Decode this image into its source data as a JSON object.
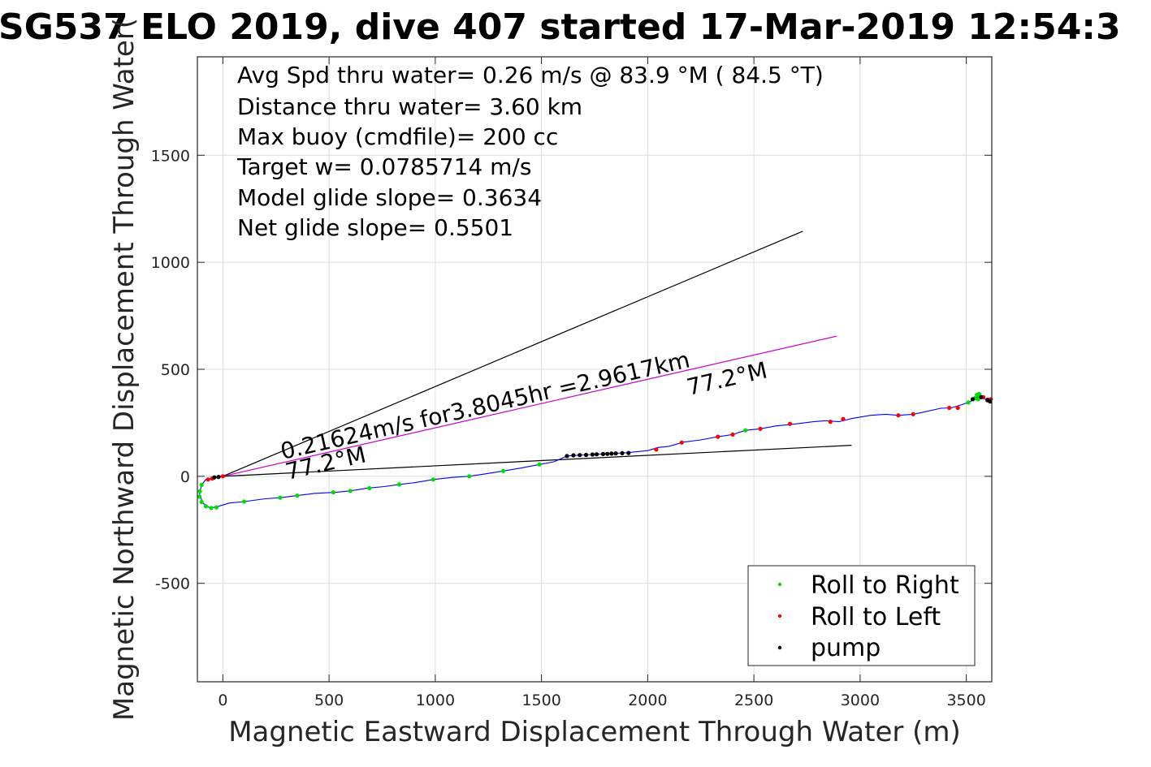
{
  "chart_data": {
    "type": "line",
    "title": "SG537 ELO 2019, dive 407 started 17-Mar-2019 12:54:3",
    "xlabel": "Magnetic Eastward Displacement Through Water (m)",
    "ylabel": "Magnetic Northward Displacement Through Water(",
    "xlim": [
      -120,
      3620
    ],
    "ylim": [
      -960,
      1960
    ],
    "xticks": [
      0,
      500,
      1000,
      1500,
      2000,
      2500,
      3000,
      3500
    ],
    "yticks": [
      -500,
      0,
      500,
      1000,
      1500
    ],
    "grid": true,
    "legend_position": "bottom-right",
    "info_lines": [
      "Avg Spd thru water=  0.26 m/s @  83.9 °M ( 84.5 °T)",
      "Distance thru water=  3.60 km",
      "Max buoy (cmdfile)= 200 cc",
      "Target w= 0.0785714 m/s",
      "Model glide slope= 0.3634",
      "Net glide slope= 0.5501"
    ],
    "annotations": {
      "upper_current": "0.21624m/s for3.8045hr =2.9617km",
      "upper_heading": "77.2°M",
      "lower_heading": "77.2°M"
    },
    "reference_lines": [
      {
        "color": "#000000",
        "points": [
          [
            0,
            0
          ],
          [
            2730,
            1145
          ]
        ]
      },
      {
        "color": "#cc00cc",
        "points": [
          [
            0,
            0
          ],
          [
            2890,
            655
          ]
        ]
      },
      {
        "color": "#000000",
        "points": [
          [
            0,
            0
          ],
          [
            2960,
            145
          ]
        ]
      }
    ],
    "series": [
      {
        "kind": "track",
        "color": "#0000ff",
        "points": [
          [
            0,
            0
          ],
          [
            -40,
            -5
          ],
          [
            -80,
            -15
          ],
          [
            -100,
            -40
          ],
          [
            -110,
            -80
          ],
          [
            -95,
            -125
          ],
          [
            -60,
            -148
          ],
          [
            -20,
            -140
          ],
          [
            30,
            -125
          ],
          [
            100,
            -118
          ],
          [
            200,
            -105
          ],
          [
            270,
            -100
          ],
          [
            350,
            -90
          ],
          [
            430,
            -80
          ],
          [
            530,
            -75
          ],
          [
            600,
            -68
          ],
          [
            680,
            -55
          ],
          [
            760,
            -48
          ],
          [
            830,
            -38
          ],
          [
            900,
            -30
          ],
          [
            990,
            -15
          ],
          [
            1080,
            -5
          ],
          [
            1160,
            0
          ],
          [
            1240,
            12
          ],
          [
            1320,
            25
          ],
          [
            1400,
            38
          ],
          [
            1490,
            55
          ],
          [
            1560,
            68
          ],
          [
            1620,
            95
          ],
          [
            1700,
            100
          ],
          [
            1800,
            105
          ],
          [
            1900,
            110
          ],
          [
            2000,
            120
          ],
          [
            2050,
            135
          ],
          [
            2100,
            140
          ],
          [
            2170,
            160
          ],
          [
            2250,
            170
          ],
          [
            2330,
            185
          ],
          [
            2400,
            195
          ],
          [
            2460,
            215
          ],
          [
            2530,
            222
          ],
          [
            2600,
            235
          ],
          [
            2700,
            245
          ],
          [
            2780,
            255
          ],
          [
            2840,
            260
          ],
          [
            2900,
            255
          ],
          [
            2960,
            270
          ],
          [
            3050,
            285
          ],
          [
            3120,
            290
          ],
          [
            3180,
            285
          ],
          [
            3250,
            290
          ],
          [
            3300,
            300
          ],
          [
            3380,
            318
          ],
          [
            3430,
            320
          ],
          [
            3480,
            335
          ],
          [
            3520,
            350
          ],
          [
            3560,
            375
          ],
          [
            3590,
            360
          ],
          [
            3610,
            358
          ]
        ]
      },
      {
        "name": "Roll to Right",
        "kind": "marker",
        "color": "#00dd00",
        "points": [
          [
            -100,
            -40
          ],
          [
            -108,
            -70
          ],
          [
            -110,
            -95
          ],
          [
            -100,
            -120
          ],
          [
            -80,
            -140
          ],
          [
            -55,
            -148
          ],
          [
            -30,
            -145
          ],
          [
            100,
            -118
          ],
          [
            270,
            -100
          ],
          [
            350,
            -90
          ],
          [
            520,
            -75
          ],
          [
            600,
            -68
          ],
          [
            690,
            -55
          ],
          [
            830,
            -38
          ],
          [
            990,
            -15
          ],
          [
            1160,
            0
          ],
          [
            1320,
            25
          ],
          [
            1490,
            55
          ],
          [
            2460,
            215
          ],
          [
            3510,
            345
          ],
          [
            3540,
            365
          ],
          [
            3550,
            380
          ],
          [
            3560,
            385
          ],
          [
            3565,
            375
          ],
          [
            3555,
            360
          ]
        ]
      },
      {
        "name": "Roll to Left",
        "kind": "marker",
        "color": "#ff0000",
        "points": [
          [
            -70,
            -15
          ],
          [
            -50,
            -10
          ],
          [
            0,
            0
          ],
          [
            2040,
            125
          ],
          [
            2160,
            158
          ],
          [
            2330,
            185
          ],
          [
            2400,
            195
          ],
          [
            2530,
            222
          ],
          [
            2670,
            245
          ],
          [
            2860,
            255
          ],
          [
            2920,
            268
          ],
          [
            3180,
            285
          ],
          [
            3250,
            290
          ],
          [
            3420,
            320
          ],
          [
            3460,
            320
          ],
          [
            3580,
            370
          ],
          [
            3600,
            358
          ],
          [
            3615,
            360
          ]
        ]
      },
      {
        "name": "pump",
        "kind": "marker",
        "color": "#000000",
        "points": [
          [
            -40,
            -5
          ],
          [
            -20,
            -3
          ],
          [
            1620,
            95
          ],
          [
            1650,
            98
          ],
          [
            1680,
            99
          ],
          [
            1710,
            100
          ],
          [
            1740,
            102
          ],
          [
            1760,
            103
          ],
          [
            1790,
            104
          ],
          [
            1810,
            105
          ],
          [
            1830,
            106
          ],
          [
            1850,
            107
          ],
          [
            1880,
            108
          ],
          [
            1910,
            109
          ],
          [
            3530,
            360
          ],
          [
            3570,
            370
          ],
          [
            3600,
            355
          ],
          [
            3612,
            350
          ]
        ]
      }
    ]
  }
}
